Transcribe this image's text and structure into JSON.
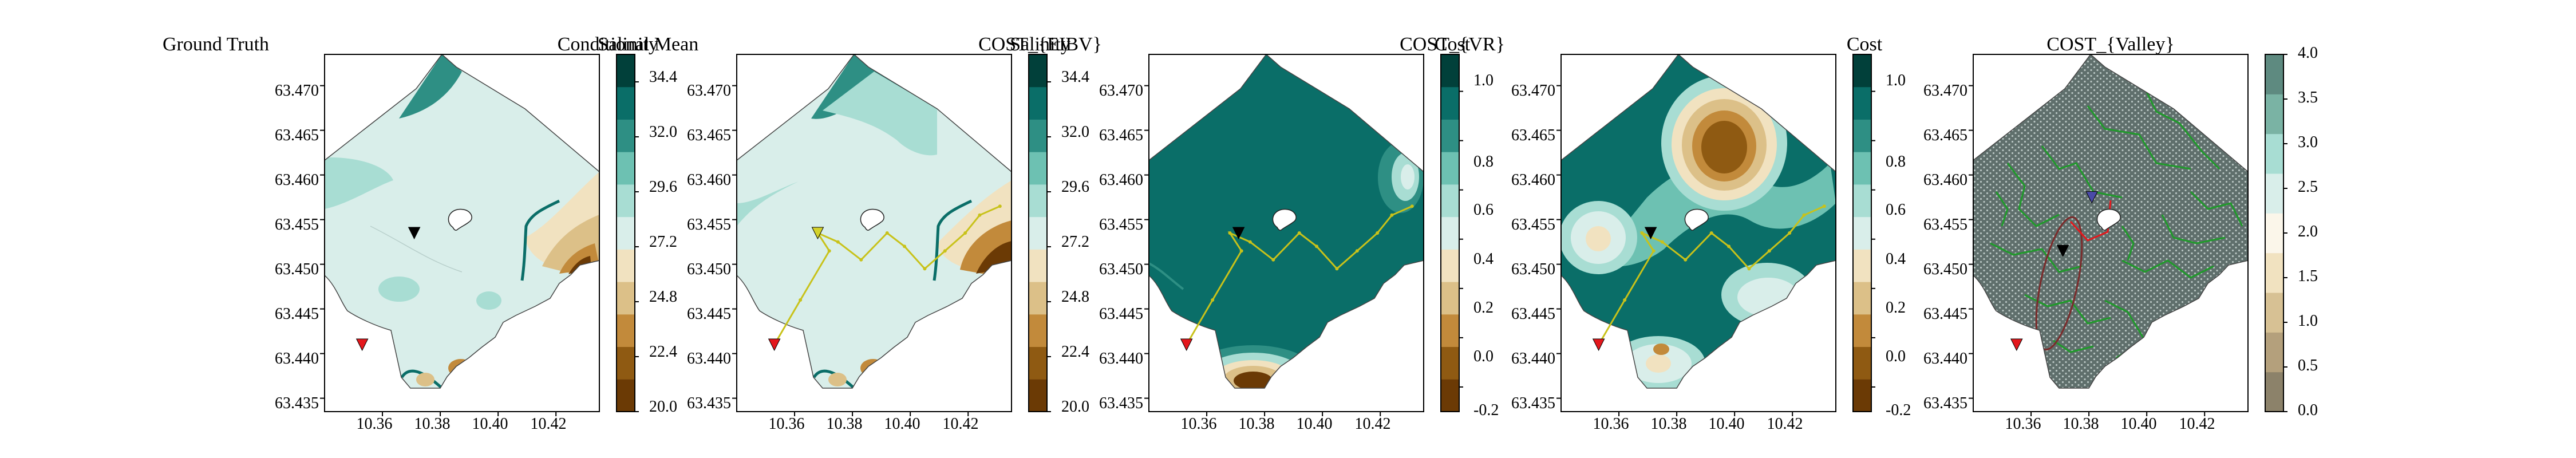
{
  "chart_data": [
    {
      "type": "contour_map",
      "title": "Ground Truth",
      "colorbar_label": "Salinity",
      "colorbar_ticks": [
        "20.0",
        "22.4",
        "24.8",
        "27.2",
        "29.6",
        "32.0",
        "34.4"
      ],
      "colorbar_range": [
        20.0,
        35.6
      ],
      "colorbar_colors": [
        "#6b3a05",
        "#8f5a12",
        "#c28a3b",
        "#dcc088",
        "#f1e2c0",
        "#d9eeea",
        "#a8ddd3",
        "#6dc1b2",
        "#2e8f84",
        "#0a6e68",
        "#01403a"
      ],
      "xlim": [
        10.34,
        10.435
      ],
      "ylim": [
        63.4335,
        63.4735
      ],
      "xticks": [
        10.36,
        10.38,
        10.4,
        10.42
      ],
      "yticks": [
        63.435,
        63.44,
        63.445,
        63.45,
        63.455,
        63.46,
        63.465,
        63.47
      ],
      "xtick_labels": [
        "10.36",
        "10.38",
        "10.40",
        "10.42"
      ],
      "ytick_labels": [
        "63.435",
        "63.440",
        "63.445",
        "63.450",
        "63.455",
        "63.460",
        "63.465",
        "63.470"
      ],
      "markers": [
        {
          "kind": "triangle-down",
          "color": "#000000",
          "x": 10.371,
          "y": 63.4535
        },
        {
          "kind": "triangle-down",
          "color": "#e4171c",
          "x": 10.353,
          "y": 63.441
        }
      ]
    },
    {
      "type": "contour_map",
      "title": "Conditional Mean",
      "colorbar_label": "Salinity",
      "colorbar_ticks": [
        "20.0",
        "22.4",
        "24.8",
        "27.2",
        "29.6",
        "32.0",
        "34.4"
      ],
      "colorbar_range": [
        20.0,
        35.6
      ],
      "colorbar_colors": [
        "#6b3a05",
        "#8f5a12",
        "#c28a3b",
        "#dcc088",
        "#f1e2c0",
        "#d9eeea",
        "#a8ddd3",
        "#6dc1b2",
        "#2e8f84",
        "#0a6e68",
        "#01403a"
      ],
      "xlim": [
        10.34,
        10.435
      ],
      "ylim": [
        63.4335,
        63.4735
      ],
      "xticks": [
        10.36,
        10.38,
        10.4,
        10.42
      ],
      "yticks": [
        63.435,
        63.44,
        63.445,
        63.45,
        63.455,
        63.46,
        63.465,
        63.47
      ],
      "xtick_labels": [
        "10.36",
        "10.38",
        "10.40",
        "10.42"
      ],
      "ytick_labels": [
        "63.435",
        "63.440",
        "63.445",
        "63.450",
        "63.455",
        "63.460",
        "63.465",
        "63.470"
      ],
      "path_color": "#c8c21a",
      "path": [
        [
          10.353,
          63.441
        ],
        [
          10.362,
          63.446
        ],
        [
          10.372,
          63.4515
        ],
        [
          10.368,
          63.4535
        ],
        [
          10.375,
          63.4525
        ],
        [
          10.383,
          63.4505
        ],
        [
          10.392,
          63.4535
        ],
        [
          10.398,
          63.452
        ],
        [
          10.405,
          63.4495
        ],
        [
          10.412,
          63.4515
        ],
        [
          10.419,
          63.4535
        ],
        [
          10.424,
          63.4555
        ],
        [
          10.431,
          63.4565
        ]
      ],
      "markers": [
        {
          "kind": "triangle-down",
          "color": "#d4d22a",
          "x": 10.368,
          "y": 63.4535
        },
        {
          "kind": "triangle-down",
          "color": "#e4171c",
          "x": 10.353,
          "y": 63.441
        }
      ]
    },
    {
      "type": "contour_map",
      "title": "COST_{EIBV}",
      "colorbar_label": "Cost",
      "colorbar_ticks": [
        "-0.2",
        "0.0",
        "0.2",
        "0.4",
        "0.6",
        "0.8",
        "1.0"
      ],
      "colorbar_range": [
        -0.3,
        1.15
      ],
      "colorbar_colors": [
        "#6b3a05",
        "#8f5a12",
        "#c28a3b",
        "#dcc088",
        "#f1e2c0",
        "#d9eeea",
        "#a8ddd3",
        "#6dc1b2",
        "#2e8f84",
        "#0a6e68",
        "#01403a"
      ],
      "xlim": [
        10.34,
        10.435
      ],
      "ylim": [
        63.4335,
        63.4735
      ],
      "xticks": [
        10.36,
        10.38,
        10.4,
        10.42
      ],
      "yticks": [
        63.435,
        63.44,
        63.445,
        63.45,
        63.455,
        63.46,
        63.465,
        63.47
      ],
      "xtick_labels": [
        "10.36",
        "10.38",
        "10.40",
        "10.42"
      ],
      "ytick_labels": [
        "63.435",
        "63.440",
        "63.445",
        "63.450",
        "63.455",
        "63.460",
        "63.465",
        "63.470"
      ],
      "path_color": "#c8c21a",
      "path": [
        [
          10.353,
          63.441
        ],
        [
          10.362,
          63.446
        ],
        [
          10.372,
          63.4515
        ],
        [
          10.368,
          63.4535
        ],
        [
          10.375,
          63.4525
        ],
        [
          10.383,
          63.4505
        ],
        [
          10.392,
          63.4535
        ],
        [
          10.398,
          63.452
        ],
        [
          10.405,
          63.4495
        ],
        [
          10.412,
          63.4515
        ],
        [
          10.419,
          63.4535
        ],
        [
          10.424,
          63.4555
        ],
        [
          10.431,
          63.4565
        ]
      ],
      "markers": [
        {
          "kind": "triangle-down",
          "color": "#000000",
          "x": 10.371,
          "y": 63.4535
        },
        {
          "kind": "triangle-down",
          "color": "#e4171c",
          "x": 10.353,
          "y": 63.441
        }
      ]
    },
    {
      "type": "contour_map",
      "title": "COST_{VR}",
      "colorbar_label": "Cost",
      "colorbar_ticks": [
        "-0.2",
        "0.0",
        "0.2",
        "0.4",
        "0.6",
        "0.8",
        "1.0"
      ],
      "colorbar_range": [
        -0.3,
        1.15
      ],
      "colorbar_colors": [
        "#6b3a05",
        "#8f5a12",
        "#c28a3b",
        "#dcc088",
        "#f1e2c0",
        "#d9eeea",
        "#a8ddd3",
        "#6dc1b2",
        "#2e8f84",
        "#0a6e68",
        "#01403a"
      ],
      "xlim": [
        10.34,
        10.435
      ],
      "ylim": [
        63.4335,
        63.4735
      ],
      "xticks": [
        10.36,
        10.38,
        10.4,
        10.42
      ],
      "yticks": [
        63.435,
        63.44,
        63.445,
        63.45,
        63.455,
        63.46,
        63.465,
        63.47
      ],
      "xtick_labels": [
        "10.36",
        "10.38",
        "10.40",
        "10.42"
      ],
      "ytick_labels": [
        "63.435",
        "63.440",
        "63.445",
        "63.450",
        "63.455",
        "63.460",
        "63.465",
        "63.470"
      ],
      "path_color": "#c8c21a",
      "path": [
        [
          10.353,
          63.441
        ],
        [
          10.362,
          63.446
        ],
        [
          10.372,
          63.4515
        ],
        [
          10.368,
          63.4535
        ],
        [
          10.375,
          63.4525
        ],
        [
          10.383,
          63.4505
        ],
        [
          10.392,
          63.4535
        ],
        [
          10.398,
          63.452
        ],
        [
          10.405,
          63.4495
        ],
        [
          10.412,
          63.4515
        ],
        [
          10.419,
          63.4535
        ],
        [
          10.424,
          63.4555
        ],
        [
          10.431,
          63.4565
        ]
      ],
      "markers": [
        {
          "kind": "triangle-down",
          "color": "#000000",
          "x": 10.371,
          "y": 63.4535
        },
        {
          "kind": "triangle-down",
          "color": "#e4171c",
          "x": 10.353,
          "y": 63.441
        }
      ]
    },
    {
      "type": "contour_map",
      "title": "COST_{Valley}",
      "colorbar_label": "",
      "colorbar_ticks": [
        "0.0",
        "0.5",
        "1.0",
        "1.5",
        "2.0",
        "2.5",
        "3.0",
        "3.5",
        "4.0"
      ],
      "colorbar_range": [
        0.0,
        4.0
      ],
      "colorbar_colors": [
        "#8c826a",
        "#b4a07c",
        "#d7c194",
        "#f1e2c0",
        "#fbf6ea",
        "#d9eeea",
        "#a8ddd3",
        "#7ab3a4",
        "#5e8a80"
      ],
      "xlim": [
        10.34,
        10.435
      ],
      "ylim": [
        63.4335,
        63.4735
      ],
      "xticks": [
        10.36,
        10.38,
        10.4,
        10.42
      ],
      "yticks": [
        63.435,
        63.44,
        63.445,
        63.45,
        63.455,
        63.46,
        63.465,
        63.47
      ],
      "xtick_labels": [
        "10.36",
        "10.38",
        "10.40",
        "10.42"
      ],
      "ytick_labels": [
        "63.435",
        "63.440",
        "63.445",
        "63.450",
        "63.455",
        "63.460",
        "63.465",
        "63.470"
      ],
      "markers": [
        {
          "kind": "triangle-down",
          "color": "#000000",
          "x": 10.371,
          "y": 63.4515
        },
        {
          "kind": "triangle-down",
          "color": "#e4171c",
          "x": 10.355,
          "y": 63.441
        },
        {
          "kind": "triangle-down",
          "color": "#4a4aa8",
          "x": 10.381,
          "y": 63.4575
        }
      ]
    }
  ]
}
